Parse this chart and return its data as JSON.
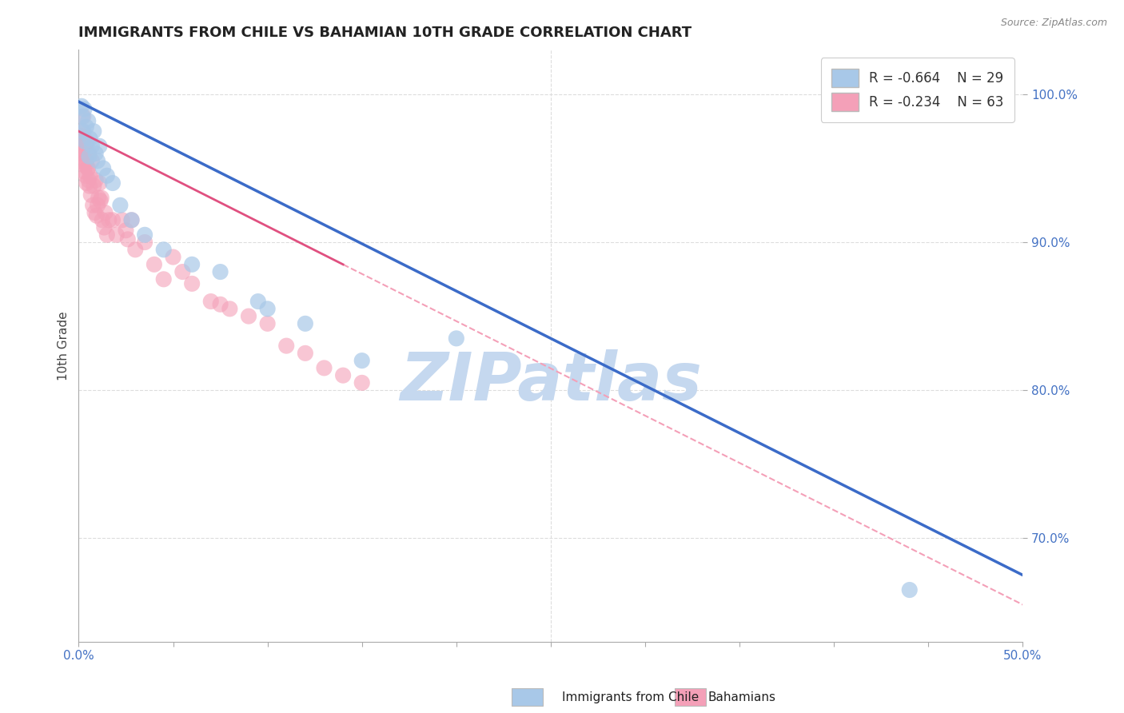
{
  "title": "IMMIGRANTS FROM CHILE VS BAHAMIAN 10TH GRADE CORRELATION CHART",
  "source": "Source: ZipAtlas.com",
  "xlabel_blue": "Immigrants from Chile",
  "xlabel_pink": "Bahamians",
  "ylabel": "10th Grade",
  "xlim": [
    0.0,
    50.0
  ],
  "ylim": [
    63.0,
    103.0
  ],
  "xticklabels_shown": {
    "0": "0.0%",
    "50": "50.0%"
  },
  "xtick_vals": [
    0.0,
    5.0,
    10.0,
    15.0,
    20.0,
    25.0,
    30.0,
    35.0,
    40.0,
    45.0,
    50.0
  ],
  "ytick_vals": [
    70.0,
    80.0,
    90.0,
    100.0
  ],
  "yticklabels": [
    "70.0%",
    "80.0%",
    "90.0%",
    "100.0%"
  ],
  "legend_R_blue": "R = -0.664",
  "legend_N_blue": "N = 29",
  "legend_R_pink": "R = -0.234",
  "legend_N_pink": "N = 63",
  "color_blue": "#A8C8E8",
  "color_pink": "#F4A0B8",
  "color_blue_line": "#3B6BC8",
  "color_pink_line": "#E05080",
  "color_pink_dash": "#F4A0B8",
  "watermark": "ZIPatlas",
  "watermark_color": "#C5D8EF",
  "blue_x": [
    0.2,
    0.3,
    0.4,
    0.5,
    0.6,
    0.7,
    0.8,
    0.9,
    1.0,
    1.1,
    1.3,
    1.5,
    1.8,
    2.2,
    2.8,
    3.5,
    4.5,
    6.0,
    7.5,
    9.5,
    12.0,
    15.0,
    10.0,
    20.0,
    44.0,
    0.15,
    0.25,
    0.35,
    0.55
  ],
  "blue_y": [
    98.5,
    99.0,
    97.8,
    98.2,
    97.0,
    96.5,
    97.5,
    96.0,
    95.5,
    96.5,
    95.0,
    94.5,
    94.0,
    92.5,
    91.5,
    90.5,
    89.5,
    88.5,
    88.0,
    86.0,
    84.5,
    82.0,
    85.5,
    83.5,
    66.5,
    99.2,
    97.5,
    96.8,
    95.8
  ],
  "pink_x": [
    0.05,
    0.1,
    0.15,
    0.2,
    0.25,
    0.3,
    0.35,
    0.4,
    0.45,
    0.5,
    0.55,
    0.6,
    0.7,
    0.8,
    0.9,
    1.0,
    1.1,
    1.2,
    1.4,
    1.6,
    1.8,
    2.0,
    2.3,
    2.5,
    2.8,
    3.0,
    3.5,
    4.0,
    4.5,
    5.0,
    5.5,
    6.0,
    7.0,
    8.0,
    9.0,
    10.0,
    11.0,
    12.0,
    13.0,
    14.0,
    0.08,
    0.12,
    0.18,
    0.22,
    0.28,
    0.32,
    0.38,
    0.42,
    0.48,
    0.52,
    0.58,
    0.65,
    0.75,
    0.85,
    0.95,
    1.05,
    1.15,
    1.25,
    1.35,
    1.5,
    2.6,
    7.5,
    15.0
  ],
  "pink_y": [
    95.5,
    97.0,
    96.0,
    97.5,
    98.5,
    97.0,
    96.5,
    95.5,
    96.8,
    95.0,
    96.0,
    94.5,
    95.5,
    93.8,
    94.2,
    92.5,
    94.0,
    93.0,
    92.0,
    91.5,
    91.5,
    90.5,
    91.5,
    90.8,
    91.5,
    89.5,
    90.0,
    88.5,
    87.5,
    89.0,
    88.0,
    87.2,
    86.0,
    85.5,
    85.0,
    84.5,
    83.0,
    82.5,
    81.5,
    81.0,
    96.8,
    97.2,
    95.8,
    96.2,
    94.8,
    95.2,
    94.5,
    94.0,
    95.0,
    94.2,
    93.8,
    93.2,
    92.5,
    92.0,
    91.8,
    93.0,
    92.8,
    91.5,
    91.0,
    90.5,
    90.2,
    85.8,
    80.5
  ],
  "blue_line_x0": 0.0,
  "blue_line_y0": 99.5,
  "blue_line_x1": 50.0,
  "blue_line_y1": 67.5,
  "pink_line_x0": 0.0,
  "pink_line_y0": 97.5,
  "pink_line_x1": 14.0,
  "pink_line_y1": 88.5,
  "pink_dash_x0": 14.0,
  "pink_dash_y0": 88.5,
  "pink_dash_x1": 50.0,
  "pink_dash_y1": 65.5
}
